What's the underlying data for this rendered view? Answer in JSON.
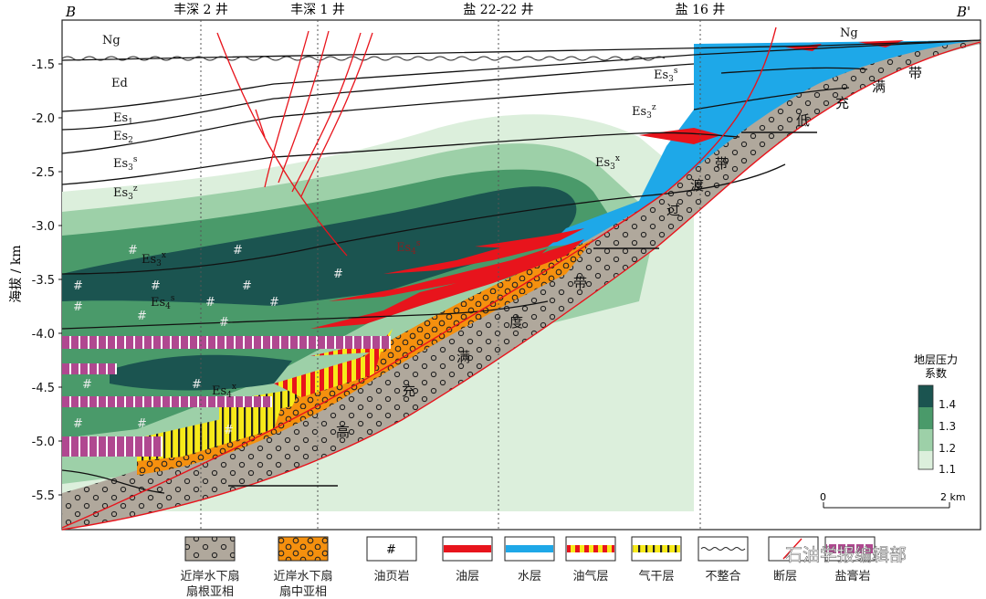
{
  "section": {
    "left_end": "B",
    "right_end": "B'"
  },
  "wells": [
    {
      "name": "丰深 2 井"
    },
    {
      "name": "丰深 1 井"
    },
    {
      "name": "盐 22-22 井"
    },
    {
      "name": "盐 16 井"
    }
  ],
  "y_axis": {
    "label": "海拔 / km",
    "ticks": [
      "-1.5",
      "-2.0",
      "-2.5",
      "-3.0",
      "-3.5",
      "-4.0",
      "-4.5",
      "-5.0",
      "-5.5"
    ]
  },
  "strata_labels": {
    "ng_left": "Ng",
    "ng_right": "Ng",
    "ed": "Ed",
    "es1_base": "Es",
    "es1_sub": "1",
    "es2_base": "Es",
    "es2_sub": "2",
    "es3s_base": "Es",
    "es3s_sub": "3",
    "es3s_sup": "s",
    "es3z_base": "Es",
    "es3z_sub": "3",
    "es3z_sup": "z",
    "es3s_right_base": "Es",
    "es3s_right_sub": "3",
    "es3s_right_sup": "s",
    "es3z_right_base": "Es",
    "es3z_right_sub": "3",
    "es3z_right_sup": "z",
    "es3x_right_base": "Es",
    "es3x_right_sub": "3",
    "es3x_right_sup": "x",
    "es3x_left_base": "Es",
    "es3x_left_sub": "3",
    "es3x_left_sup": "x",
    "es4s_mid_base": "Es",
    "es4s_mid_sub": "4",
    "es4s_mid_sup": "s",
    "es4s_left_base": "Es",
    "es4s_left_sub": "4",
    "es4s_left_sup": "s",
    "es4x_base": "Es",
    "es4x_sub": "4",
    "es4x_sup": "x"
  },
  "zone_chars": {
    "low_full": [
      "带",
      "满",
      "充",
      "低"
    ],
    "transition": [
      "带",
      "渡",
      "过"
    ],
    "middle": [
      "带",
      "度",
      "满",
      "充"
    ],
    "high": [
      "高"
    ]
  },
  "pressure_scale": {
    "title_line1": "地层压力",
    "title_line2": "系数",
    "ticks": [
      "1.4",
      "1.3",
      "1.2",
      "1.1"
    ],
    "colors": [
      "#1b5450",
      "#4a9a6a",
      "#9dd0a8",
      "#dcefdc"
    ]
  },
  "scale_bar": {
    "start": "0",
    "end": "2 km"
  },
  "legend": [
    {
      "line1": "近岸水下扇",
      "line2": "扇根亚相",
      "key": "fan-root"
    },
    {
      "line1": "近岸水下扇",
      "line2": "扇中亚相",
      "key": "fan-middle"
    },
    {
      "line1": "油页岩",
      "line2": "",
      "key": "oil-shale"
    },
    {
      "line1": "油层",
      "line2": "",
      "key": "oil-layer"
    },
    {
      "line1": "水层",
      "line2": "",
      "key": "water-layer"
    },
    {
      "line1": "油气层",
      "line2": "",
      "key": "oil-gas-layer"
    },
    {
      "line1": "气干层",
      "line2": "",
      "key": "gas-dry-layer"
    },
    {
      "line1": "不整合",
      "line2": "",
      "key": "unconformity"
    },
    {
      "line1": "断层",
      "line2": "",
      "key": "fault"
    },
    {
      "line1": "盐膏岩",
      "line2": "",
      "key": "salt"
    }
  ],
  "watermark": "石油学报编辑部",
  "colors": {
    "oil": "#e8141c",
    "water": "#1ea8e8",
    "fan_root": "#b0a89c",
    "fan_middle": "#f5900e",
    "gas": "#f7ea1a",
    "salt": "#b04890",
    "fault": "#e8141c"
  }
}
